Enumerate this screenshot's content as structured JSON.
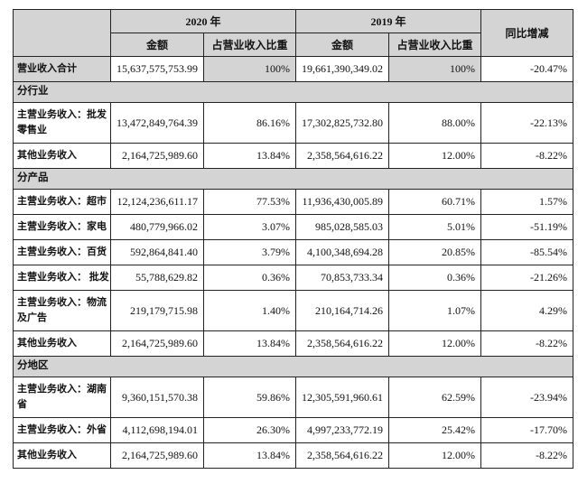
{
  "colors": {
    "cell_shaded": "#d4d4d4",
    "cell_plain": "#ffffff",
    "grid_line": "#222222",
    "page_background": "#ffffff"
  },
  "table": {
    "columns": {
      "corner": "",
      "col_2020": "2020 年",
      "col_2019": "2019 年",
      "col_yoy": "同比增减",
      "sub_amount": "金额",
      "sub_ratio": "占营业收入比重"
    },
    "rows": [
      {
        "type": "data",
        "shaded": true,
        "label": "营业收入合计",
        "a2020": "15,637,575,753.99",
        "p2020": "100%",
        "a2019": "19,661,390,349.02",
        "p2019": "100%",
        "yoy": "-20.47%"
      },
      {
        "type": "section",
        "label": "分行业"
      },
      {
        "type": "data",
        "label": "主营业务收入：批发零售业",
        "a2020": "13,472,849,764.39",
        "p2020": "86.16%",
        "a2019": "17,302,825,732.80",
        "p2019": "88.00%",
        "yoy": "-22.13%"
      },
      {
        "type": "data",
        "label": "其他业务收入",
        "a2020": "2,164,725,989.60",
        "p2020": "13.84%",
        "a2019": "2,358,564,616.22",
        "p2019": "12.00%",
        "yoy": "-8.22%"
      },
      {
        "type": "section",
        "label": "分产品"
      },
      {
        "type": "data",
        "label": "主营业务收入：超市",
        "a2020": "12,124,236,611.17",
        "p2020": "77.53%",
        "a2019": "11,936,430,005.89",
        "p2019": "60.71%",
        "yoy": "1.57%"
      },
      {
        "type": "data",
        "label": "主营业务收入：家电",
        "a2020": "480,779,966.02",
        "p2020": "3.07%",
        "a2019": "985,028,585.03",
        "p2019": "5.01%",
        "yoy": "-51.19%"
      },
      {
        "type": "data",
        "label": "主营业务收入：百货",
        "a2020": "592,864,841.40",
        "p2020": "3.79%",
        "a2019": "4,100,348,694.28",
        "p2019": "20.85%",
        "yoy": "-85.54%"
      },
      {
        "type": "data",
        "label": "主营业务收入： 批发",
        "a2020": "55,788,629.82",
        "p2020": "0.36%",
        "a2019": "70,853,733.34",
        "p2019": "0.36%",
        "yoy": "-21.26%"
      },
      {
        "type": "data",
        "label": "主营业务收入：物流及广告",
        "a2020": "219,179,715.98",
        "p2020": "1.40%",
        "a2019": "210,164,714.26",
        "p2019": "1.07%",
        "yoy": "4.29%"
      },
      {
        "type": "data",
        "label": "其他业务收入",
        "a2020": "2,164,725,989.60",
        "p2020": "13.84%",
        "a2019": "2,358,564,616.22",
        "p2019": "12.00%",
        "yoy": "-8.22%"
      },
      {
        "type": "section",
        "label": "分地区"
      },
      {
        "type": "data",
        "label": "主营业务收入：湖南省",
        "a2020": "9,360,151,570.38",
        "p2020": "59.86%",
        "a2019": "12,305,591,960.61",
        "p2019": "62.59%",
        "yoy": "-23.94%"
      },
      {
        "type": "data",
        "label": "主营业务收入：外省",
        "a2020": "4,112,698,194.01",
        "p2020": "26.30%",
        "a2019": "4,997,233,772.19",
        "p2019": "25.42%",
        "yoy": "-17.70%"
      },
      {
        "type": "data",
        "label": "其他业务收入",
        "a2020": "2,164,725,989.60",
        "p2020": "13.84%",
        "a2019": "2,358,564,616.22",
        "p2019": "12.00%",
        "yoy": "-8.22%"
      }
    ]
  }
}
